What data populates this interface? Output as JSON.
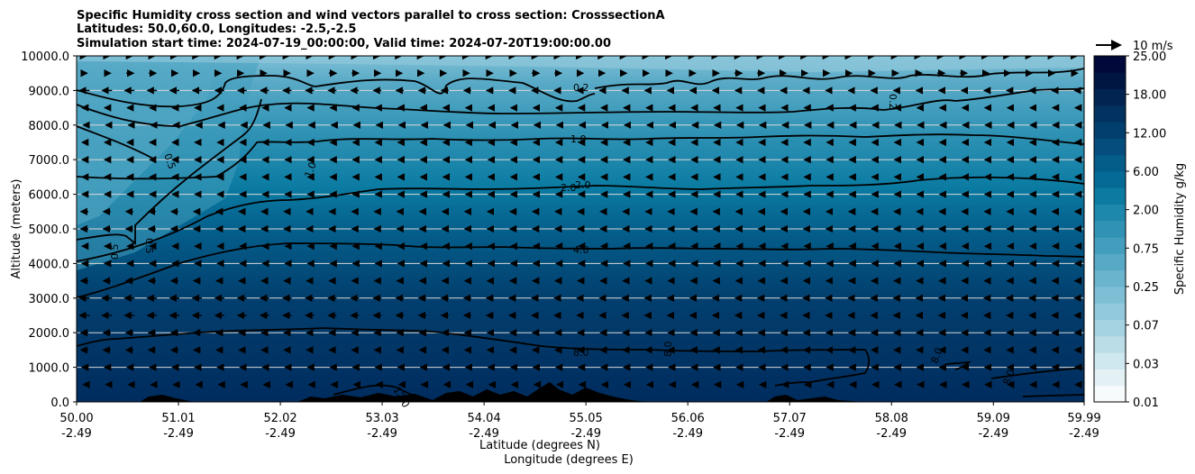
{
  "chart_data": {
    "type": "heatmap",
    "title_lines": [
      "Specific Humidity cross section and wind vectors parallel to cross section: CrosssectionA",
      "Latitudes: 50.0,60.0, Longitudes: -2.5,-2.5",
      "Simulation start time: 2024-07-19_00:00:00, Valid time: 2024-07-20T19:00:00.00"
    ],
    "ylabel": "Altitude (meters)",
    "xlabel_lat": "Latitude (degrees N)",
    "xlabel_lon": "Longitude (degrees E)",
    "ylim": [
      0,
      10000
    ],
    "xlim": [
      50.0,
      59.99
    ],
    "yticks": [
      "0.0",
      "1000.0",
      "2000.0",
      "3000.0",
      "4000.0",
      "5000.0",
      "6000.0",
      "7000.0",
      "8000.0",
      "9000.0",
      "10000.0"
    ],
    "ytick_values": [
      0,
      1000,
      2000,
      3000,
      4000,
      5000,
      6000,
      7000,
      8000,
      9000,
      10000
    ],
    "xtick_lat": [
      "50.00",
      "51.01",
      "52.02",
      "53.03",
      "54.04",
      "55.05",
      "56.06",
      "57.07",
      "58.08",
      "59.09",
      "59.99"
    ],
    "xtick_lat_values": [
      50.0,
      51.01,
      52.02,
      53.03,
      54.04,
      55.05,
      56.06,
      57.07,
      58.08,
      59.09,
      59.99
    ],
    "xtick_lon": [
      "-2.49",
      "-2.49",
      "-2.49",
      "-2.49",
      "-2.49",
      "-2.49",
      "-2.49",
      "-2.49",
      "-2.49",
      "-2.49",
      "-2.49"
    ],
    "colorbar": {
      "label": "Specific Humidity g/kg",
      "ticks": [
        "0.01",
        "0.03",
        "0.07",
        "0.25",
        "0.75",
        "2.00",
        "6.00",
        "12.00",
        "18.00",
        "25.00"
      ],
      "colors": [
        "#f7fbfc",
        "#e3f1f4",
        "#cfe8ef",
        "#bbdde8",
        "#a6d3e2",
        "#92c9dc",
        "#7fbfd5",
        "#6bb4ce",
        "#57a9c6",
        "#439ebe",
        "#3093b5",
        "#1e87ac",
        "#0b7ba2",
        "#056b96",
        "#045c89",
        "#034e7c",
        "#023f6e",
        "#02325f",
        "#012450",
        "#001642",
        "#00093a"
      ]
    },
    "wind_reference": "10 m/s",
    "contour_labels": [
      "0.2",
      "0.2",
      "0.5",
      "0.5",
      "0.5",
      "1.0",
      "1.0",
      "2.0",
      "2.0",
      "4.0",
      "8.0",
      "8.0",
      "8.0",
      "8.0",
      "12.0"
    ],
    "contour_levels": [
      0.2,
      0.5,
      1.0,
      2.0,
      4.0,
      8.0,
      12.0
    ],
    "contour_heights_m": {
      "0.2": 9100,
      "1.0": 7500,
      "2.0": 6300,
      "4.0": 4400,
      "8.0": 1600,
      "12.0": 300
    },
    "wind_rows_m": [
      500,
      1000,
      1500,
      2000,
      2500,
      3000,
      3500,
      4000,
      4500,
      5000,
      5500,
      6000,
      6500,
      7000,
      7500,
      8000,
      8500,
      9000,
      9500,
      10000
    ],
    "wind_u_profile_ms": [
      -1,
      -2,
      -3,
      -3,
      -4,
      -4,
      -3,
      -2,
      -2,
      -3,
      -3,
      -2,
      -2,
      -2,
      -2,
      -1,
      -2,
      -4,
      3,
      2
    ]
  }
}
